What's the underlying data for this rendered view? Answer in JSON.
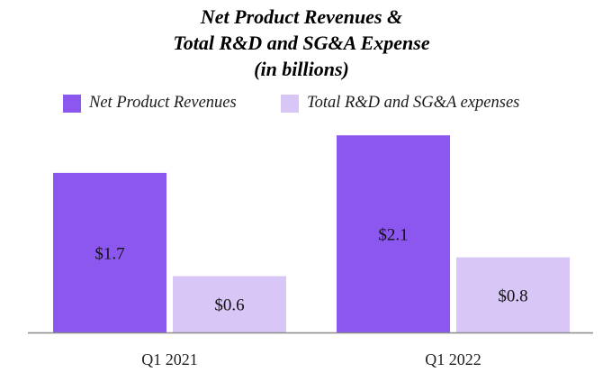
{
  "chart_data": {
    "type": "bar",
    "title_lines": [
      "Net Product Revenues &",
      "Total R&D and SG&A Expense",
      "(in billions)"
    ],
    "categories": [
      "Q1 2021",
      "Q1 2022"
    ],
    "series": [
      {
        "name": "Net Product Revenues",
        "values": [
          1.7,
          2.1
        ],
        "labels": [
          "$1.7",
          "$2.1"
        ],
        "color": "#8c57ee"
      },
      {
        "name": "Total R&D and SG&A expenses",
        "values": [
          0.6,
          0.8
        ],
        "labels": [
          "$0.6",
          "$0.8"
        ],
        "color": "#d8c6f6"
      }
    ],
    "ylim": [
      0,
      2.15
    ],
    "grid": false,
    "legend": "top"
  }
}
